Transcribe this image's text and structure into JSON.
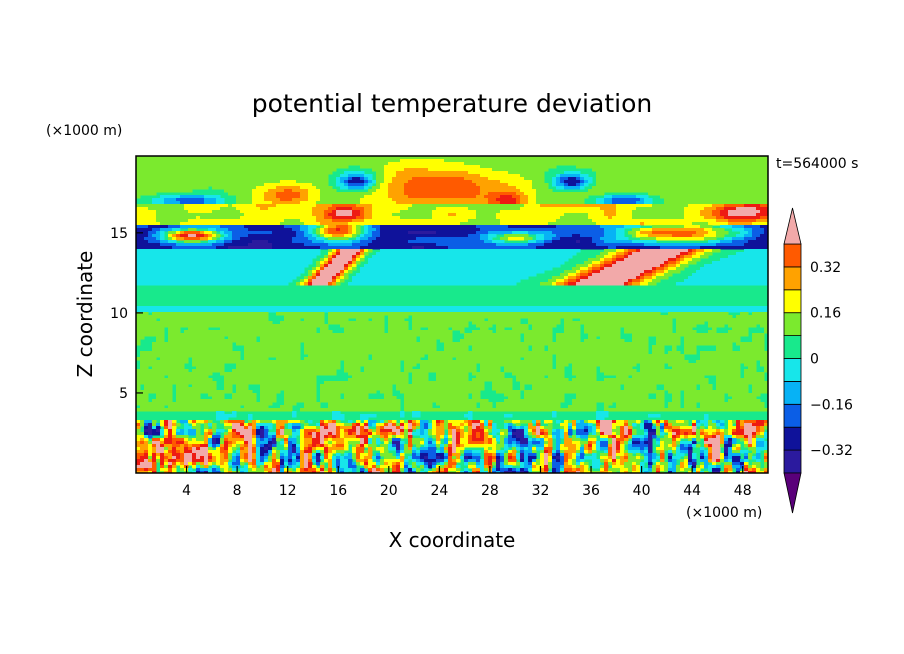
{
  "chart_data": {
    "type": "heatmap",
    "title": "potential temperature deviation",
    "xlabel": "X coordinate",
    "ylabel": "Z coordinate",
    "x_unit": "(×1000 m)",
    "y_unit": "(×1000 m)",
    "time_label": "t=564000 s",
    "xlim": [
      0,
      50
    ],
    "ylim": [
      0,
      19.8
    ],
    "x_ticks": [
      4,
      8,
      12,
      16,
      20,
      24,
      28,
      32,
      36,
      40,
      44,
      48
    ],
    "y_ticks": [
      5,
      10,
      15
    ],
    "colorbar": {
      "levels": [
        -0.4,
        -0.32,
        -0.24,
        -0.16,
        -0.08,
        0.0,
        0.08,
        0.16,
        0.24,
        0.32,
        0.4
      ],
      "labeled_levels": [
        0.32,
        0.16,
        0,
        -0.16,
        -0.32
      ],
      "colors": [
        "#5a007a",
        "#2b1a9e",
        "#0f129a",
        "#0b5ee6",
        "#07b2f5",
        "#17e6ea",
        "#18e98c",
        "#7bea2e",
        "#ffff00",
        "#ffa200",
        "#ff5a00",
        "#ee1a12",
        "#f2a9a9"
      ],
      "extend": "both"
    },
    "field_bands": [
      {
        "z_range": [
          0,
          3.5
        ],
        "description_level": -0.1
      },
      {
        "z_range": [
          3.5,
          10
        ],
        "level": 0.02
      },
      {
        "z_range": [
          10,
          10.4
        ],
        "level": -0.09
      },
      {
        "z_range": [
          10.4,
          11.8
        ],
        "level": -0.06
      },
      {
        "z_range": [
          11.8,
          14
        ],
        "level": -0.1
      },
      {
        "z_range": [
          14,
          15.5
        ],
        "level": -0.33
      },
      {
        "z_range": [
          15.5,
          16.8
        ],
        "level": 0.12
      },
      {
        "z_range": [
          16.8,
          17.5
        ],
        "level": -0.25
      },
      {
        "z_range": [
          17.5,
          19.8
        ],
        "level": 0.05
      }
    ]
  }
}
